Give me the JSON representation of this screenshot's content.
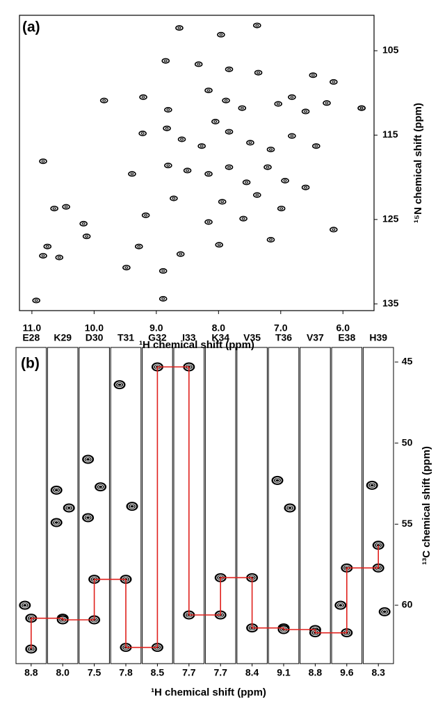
{
  "chart_data": [
    {
      "type": "scatter",
      "panel_label": "(a)",
      "x_label": "¹H chemical shift (ppm)",
      "y_label": "¹⁵N chemical shift (ppm)",
      "xlim": [
        11.2,
        5.5
      ],
      "ylim": [
        135.8,
        100.8
      ],
      "xticks": [
        {
          "value": 11,
          "label": "11.0"
        },
        {
          "value": 10,
          "label": "10.0"
        },
        {
          "value": 9,
          "label": "9.0"
        },
        {
          "value": 8,
          "label": "8.0"
        },
        {
          "value": 7,
          "label": "7.0"
        },
        {
          "value": 6,
          "label": "6.0"
        }
      ],
      "yticks": [
        105,
        115,
        125,
        135
      ],
      "color": "#000000",
      "x": [
        8.63,
        7.38,
        7.96,
        8.85,
        8.32,
        7.83,
        7.36,
        6.48,
        6.15,
        5.7,
        9.84,
        9.21,
        8.81,
        8.16,
        7.88,
        7.62,
        7.04,
        6.82,
        6.6,
        6.26,
        5.7,
        9.22,
        8.83,
        8.59,
        8.27,
        8.05,
        7.83,
        7.49,
        7.16,
        6.82,
        6.43,
        8.81,
        8.5,
        8.16,
        7.83,
        7.55,
        7.21,
        6.93,
        6.6,
        10.82,
        9.39,
        8.72,
        7.94,
        7.38,
        6.99,
        10.64,
        10.45,
        10.17,
        9.17,
        8.16,
        7.6,
        6.15,
        10.12,
        9.28,
        8.61,
        7.99,
        7.16,
        10.75,
        10.82,
        10.56,
        9.48,
        8.89,
        8.89,
        10.93
      ],
      "values": [
        102.3,
        102.0,
        103.1,
        106.2,
        106.6,
        107.2,
        107.6,
        107.9,
        108.7,
        111.8,
        110.9,
        110.5,
        112.0,
        109.7,
        110.9,
        111.8,
        111.3,
        110.5,
        112.2,
        111.2,
        111.8,
        114.8,
        114.2,
        115.5,
        116.3,
        113.4,
        114.6,
        115.9,
        116.7,
        115.1,
        116.3,
        118.6,
        119.2,
        119.6,
        118.8,
        120.6,
        118.8,
        120.4,
        121.2,
        118.1,
        119.6,
        122.5,
        122.9,
        122.1,
        123.7,
        123.7,
        123.5,
        125.5,
        124.5,
        125.3,
        124.9,
        126.2,
        127.0,
        128.2,
        129.1,
        128.0,
        127.4,
        128.2,
        129.3,
        129.5,
        130.7,
        131.1,
        134.4,
        134.6
      ]
    },
    {
      "type": "strip",
      "panel_label": "(b)",
      "x_label": "¹H chemical shift (ppm)",
      "y_label": "¹³C chemical shift (ppm)",
      "ylim": [
        63.6,
        44.1
      ],
      "yticks": [
        45,
        50,
        55,
        60
      ],
      "line_color": "#e0201c",
      "color": "#000000",
      "categories": [
        "E28",
        "K29",
        "D30",
        "T31",
        "G32",
        "I33",
        "K34",
        "V35",
        "T36",
        "V37",
        "E38",
        "H39"
      ],
      "xticks": [
        8.8,
        {
          "value": 8,
          "label": "8.0"
        },
        7.5,
        7.8,
        8.5,
        7.7,
        7.7,
        8.4,
        9.1,
        8.8,
        9.6,
        8.3
      ],
      "ca_prev": [
        62.7,
        60.8,
        60.9,
        58.4,
        62.6,
        45.3,
        60.6,
        58.3,
        61.4,
        61.5,
        61.7,
        57.7
      ],
      "ca": [
        60.8,
        60.9,
        58.4,
        62.6,
        45.3,
        60.6,
        58.3,
        61.4,
        61.5,
        61.7,
        57.7,
        56.3
      ],
      "other_peaks": [
        [
          60.0
        ],
        [
          52.9,
          54.0,
          54.9
        ],
        [
          51.0,
          52.7,
          54.6
        ],
        [
          46.4,
          53.9
        ],
        [],
        [],
        [],
        [],
        [
          52.3,
          54.0
        ],
        [],
        [
          60.0
        ],
        [
          52.6,
          60.4
        ]
      ]
    }
  ]
}
